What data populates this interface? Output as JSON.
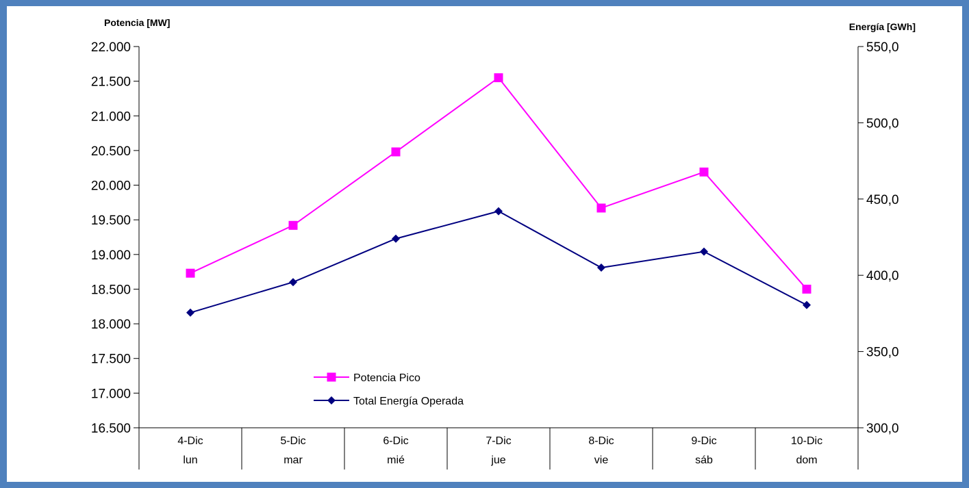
{
  "chart_data": {
    "type": "line",
    "title": "",
    "y_left": {
      "label": "Potencia [MW]",
      "min": 16500,
      "max": 22000,
      "ticks": [
        "22.000",
        "21.500",
        "21.000",
        "20.500",
        "20.000",
        "19.500",
        "19.000",
        "18.500",
        "18.000",
        "17.500",
        "17.000",
        "16.500"
      ],
      "tick_values": [
        22000,
        21500,
        21000,
        20500,
        20000,
        19500,
        19000,
        18500,
        18000,
        17500,
        17000,
        16500
      ]
    },
    "y_right": {
      "label": "Energía [GWh]",
      "min": 300,
      "max": 550,
      "ticks": [
        "550,0",
        "500,0",
        "450,0",
        "400,0",
        "350,0",
        "300,0"
      ],
      "tick_values": [
        550,
        500,
        450,
        400,
        350,
        300
      ]
    },
    "categories": [
      {
        "date": "4-Dic",
        "day": "lun"
      },
      {
        "date": "5-Dic",
        "day": "mar"
      },
      {
        "date": "6-Dic",
        "day": "mié"
      },
      {
        "date": "7-Dic",
        "day": "jue"
      },
      {
        "date": "8-Dic",
        "day": "vie"
      },
      {
        "date": "9-Dic",
        "day": "sáb"
      },
      {
        "date": "10-Dic",
        "day": "dom"
      }
    ],
    "series": [
      {
        "name": "Potencia Pico",
        "axis": "left",
        "color": "#ff00ff",
        "marker": "square",
        "values": [
          18730,
          19420,
          20480,
          21550,
          19670,
          20190,
          18500
        ]
      },
      {
        "name": "Total Energía Operada",
        "axis": "right",
        "color": "#000080",
        "marker": "diamond",
        "values": [
          375.5,
          395.5,
          424,
          442,
          405,
          415.5,
          380.5
        ]
      }
    ],
    "legend": "bottom-left-inside",
    "grid": false
  }
}
